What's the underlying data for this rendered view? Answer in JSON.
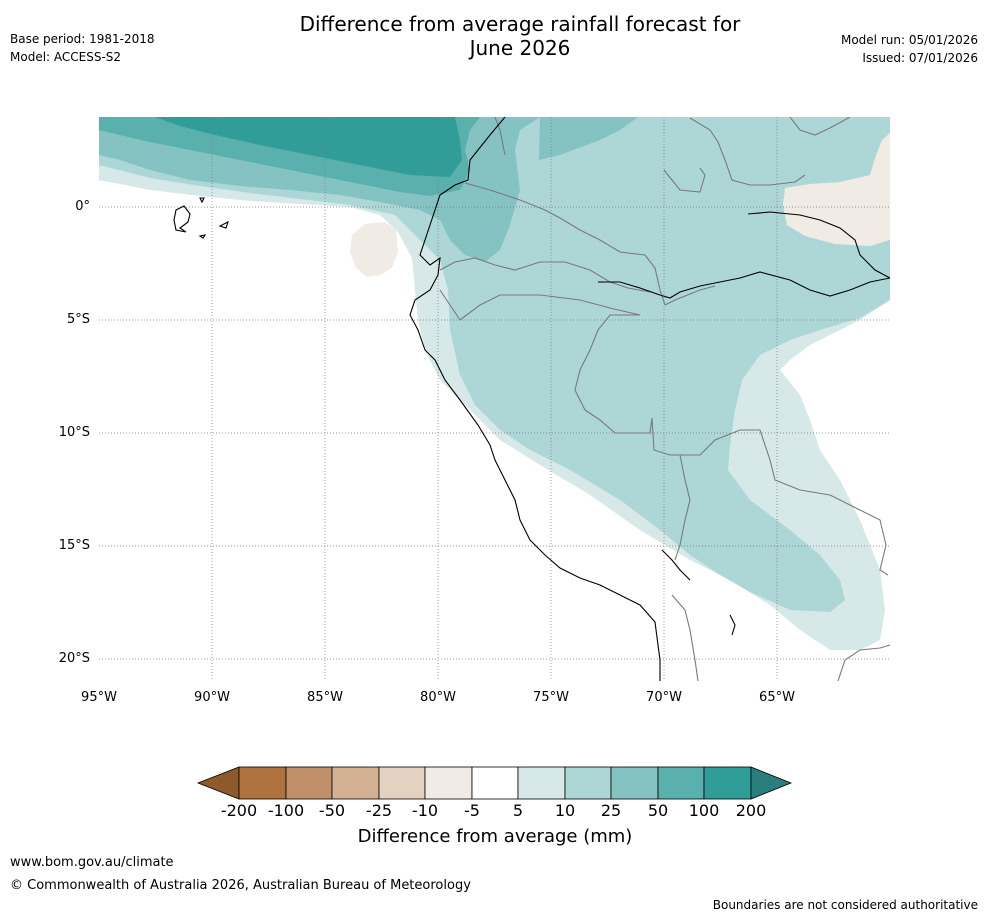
{
  "header": {
    "title_line1": "Difference from average rainfall forecast for",
    "title_line2": "June 2026",
    "base_period": "Base period: 1981-2018",
    "model": "Model: ACCESS-S2",
    "model_run": "Model run: 05/01/2026",
    "issued": "Issued: 07/01/2026"
  },
  "map": {
    "lat_labels": [
      "0°",
      "5°S",
      "10°S",
      "15°S",
      "20°S"
    ],
    "lon_labels": [
      "95°W",
      "90°W",
      "85°W",
      "80°W",
      "75°W",
      "70°W",
      "65°W"
    ],
    "colors": {
      "c200neg": "#8c5a2b",
      "c100neg": "#ae733e",
      "c50neg": "#c09068",
      "c25neg": "#d3b092",
      "c10neg": "#e4d2c1",
      "c5neg": "#f1ebe6",
      "zero": "#ffffff",
      "c5": "#d6e9e8",
      "c10": "#add7d6",
      "c25": "#84c3c1",
      "c50": "#5ab0ad",
      "c100": "#319d99",
      "c200": "#2a7e7b"
    }
  },
  "colorbar": {
    "labels": [
      "-200",
      "-100",
      "-50",
      "-25",
      "-10",
      "-5",
      "5",
      "10",
      "25",
      "50",
      "100",
      "200"
    ],
    "title": "Difference from average (mm)"
  },
  "footer": {
    "website": "www.bom.gov.au/climate",
    "copyright": "© Commonwealth of Australia 2026, Australian Bureau of Meteorology",
    "disclaimer": "Boundaries are not considered authoritative"
  }
}
